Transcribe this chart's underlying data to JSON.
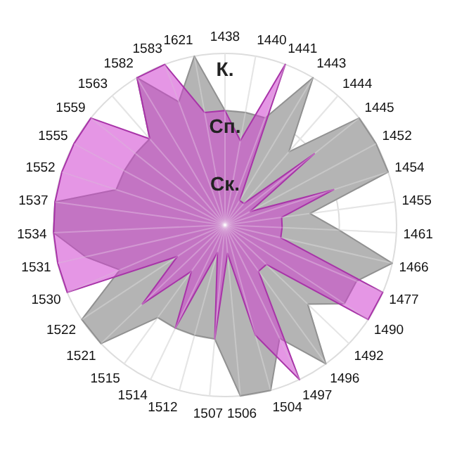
{
  "chart_data": {
    "type": "radar",
    "categories": [
      "1438",
      "1440",
      "1441",
      "1443",
      "1444",
      "1445",
      "1452",
      "1454",
      "1455",
      "1461",
      "1466",
      "1477",
      "1490",
      "1492",
      "1496",
      "1497",
      "1504",
      "1506",
      "1507",
      "1512",
      "1514",
      "1515",
      "1521",
      "1522",
      "1530",
      "1531",
      "1534",
      "1537",
      "1552",
      "1555",
      "1559",
      "1563",
      "1582",
      "1583",
      "1621"
    ],
    "ylim": [
      0,
      3
    ],
    "yticks": [
      {
        "value": 1,
        "label": "Ск."
      },
      {
        "value": 2,
        "label": "Сп."
      },
      {
        "value": 3,
        "label": "К."
      }
    ],
    "grid": true,
    "series": [
      {
        "color": "#b4b4b4",
        "values": [
          2,
          2,
          2,
          3,
          1.7,
          3,
          3,
          3,
          1.5,
          2,
          3,
          2.5,
          2.5,
          2,
          3,
          2.2,
          3,
          3,
          2,
          2,
          2,
          2,
          3,
          3,
          2,
          2.5,
          3,
          3,
          2,
          2,
          2,
          2,
          3,
          2.3,
          3
        ]
      },
      {
        "color": "#d040d0",
        "values": [
          2,
          1.5,
          3,
          0.5,
          0.5,
          2,
          0.5,
          2,
          1,
          1,
          1,
          3,
          3,
          1,
          1,
          3,
          2,
          0.5,
          2,
          0.5,
          2,
          1,
          2,
          1,
          3,
          3,
          3,
          3,
          3,
          3,
          3,
          2,
          3,
          3,
          2
        ]
      }
    ]
  }
}
